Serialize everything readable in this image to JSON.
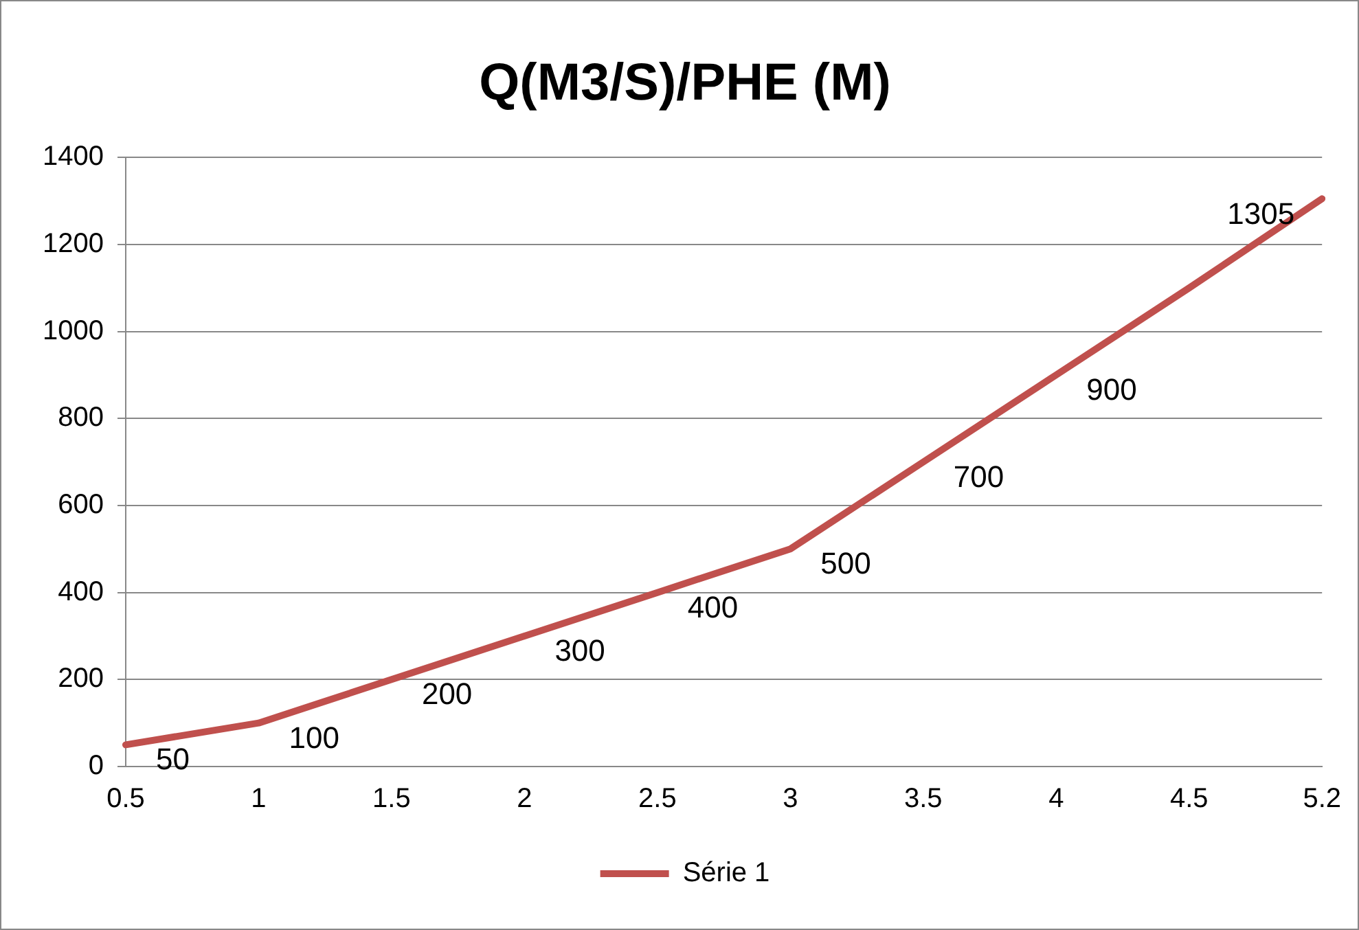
{
  "chart_data": {
    "type": "line",
    "title": "Q(M3/S)/PHE (M)",
    "categories": [
      "0.5",
      "1",
      "1.5",
      "2",
      "2.5",
      "3",
      "3.5",
      "4",
      "4.5",
      "5.2"
    ],
    "series": [
      {
        "name": "Série 1",
        "color": "#c0504d",
        "values": [
          50,
          100,
          200,
          300,
          400,
          500,
          700,
          900,
          1100,
          1305
        ],
        "value_labels": [
          "50",
          "100",
          "200",
          "300",
          "400",
          "500",
          "700",
          "900",
          null,
          "1305"
        ]
      }
    ],
    "ylim": [
      0,
      1400
    ],
    "yticks": [
      0,
      200,
      400,
      600,
      800,
      1000,
      1200,
      1400
    ],
    "grid": "y",
    "legend": "bottom",
    "marker": "none",
    "line_style": "solid"
  }
}
